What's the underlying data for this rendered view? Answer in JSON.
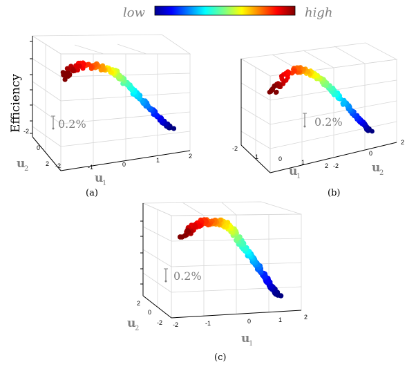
{
  "colorbar": {
    "low_label": "low",
    "high_label": "high",
    "colormap": "jet"
  },
  "chart_data": [
    {
      "type": "scatter",
      "panel": "a",
      "caption": "(a)",
      "zlabel": "Efficiency",
      "xlabel": "u",
      "xlabel_sub": "1",
      "ylabel": "u",
      "ylabel_sub": "2",
      "scale_annotation": "0.2%",
      "x_ticks": [
        "-2",
        "-1",
        "0",
        "1",
        "2"
      ],
      "y_ticks": [
        "-2",
        "0",
        "2"
      ],
      "grid": true
    },
    {
      "type": "scatter",
      "panel": "b",
      "caption": "(b)",
      "xlabel": "u",
      "xlabel_sub": "1",
      "ylabel": "u",
      "ylabel_sub": "2",
      "scale_annotation": "0.2%",
      "x_ticks": [
        "-2",
        "-1",
        "0",
        "1",
        "2"
      ],
      "y_ticks": [
        "-2",
        "0",
        "2"
      ],
      "grid": true
    },
    {
      "type": "scatter",
      "panel": "c",
      "caption": "(c)",
      "xlabel": "u",
      "xlabel_sub": "1",
      "ylabel": "u",
      "ylabel_sub": "2",
      "scale_annotation": "0.2%",
      "x_ticks": [
        "-2",
        "-1",
        "0",
        "1",
        "2"
      ],
      "y_ticks": [
        "2",
        "0",
        "-2"
      ],
      "grid": true
    }
  ]
}
